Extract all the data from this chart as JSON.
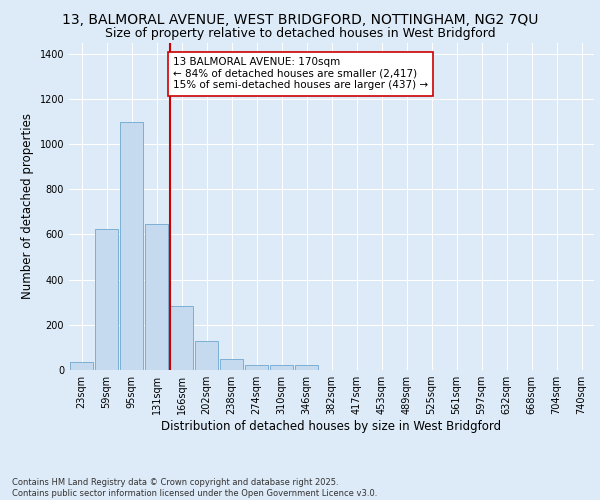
{
  "title_line1": "13, BALMORAL AVENUE, WEST BRIDGFORD, NOTTINGHAM, NG2 7QU",
  "title_line2": "Size of property relative to detached houses in West Bridgford",
  "xlabel": "Distribution of detached houses by size in West Bridgford",
  "ylabel": "Number of detached properties",
  "categories": [
    "23sqm",
    "59sqm",
    "95sqm",
    "131sqm",
    "166sqm",
    "202sqm",
    "238sqm",
    "274sqm",
    "310sqm",
    "346sqm",
    "382sqm",
    "417sqm",
    "453sqm",
    "489sqm",
    "525sqm",
    "561sqm",
    "597sqm",
    "632sqm",
    "668sqm",
    "704sqm",
    "740sqm"
  ],
  "values": [
    35,
    625,
    1100,
    645,
    285,
    130,
    50,
    20,
    20,
    20,
    0,
    0,
    0,
    0,
    0,
    0,
    0,
    0,
    0,
    0,
    0
  ],
  "bar_color": "#c5d9ef",
  "bar_edge_color": "#7bafd4",
  "vline_color": "#cc0000",
  "annotation_text": "13 BALMORAL AVENUE: 170sqm\n← 84% of detached houses are smaller (2,417)\n15% of semi-detached houses are larger (437) →",
  "annotation_box_color": "#ffffff",
  "annotation_box_edge": "#cc0000",
  "ylim": [
    0,
    1450
  ],
  "yticks": [
    0,
    200,
    400,
    600,
    800,
    1000,
    1200,
    1400
  ],
  "background_color": "#ddeaf7",
  "plot_bg_color": "#ddeaf7",
  "footer_text": "Contains HM Land Registry data © Crown copyright and database right 2025.\nContains public sector information licensed under the Open Government Licence v3.0.",
  "title_fontsize": 10,
  "subtitle_fontsize": 9,
  "tick_fontsize": 7,
  "label_fontsize": 8.5,
  "annotation_fontsize": 7.5,
  "footer_fontsize": 6.0
}
